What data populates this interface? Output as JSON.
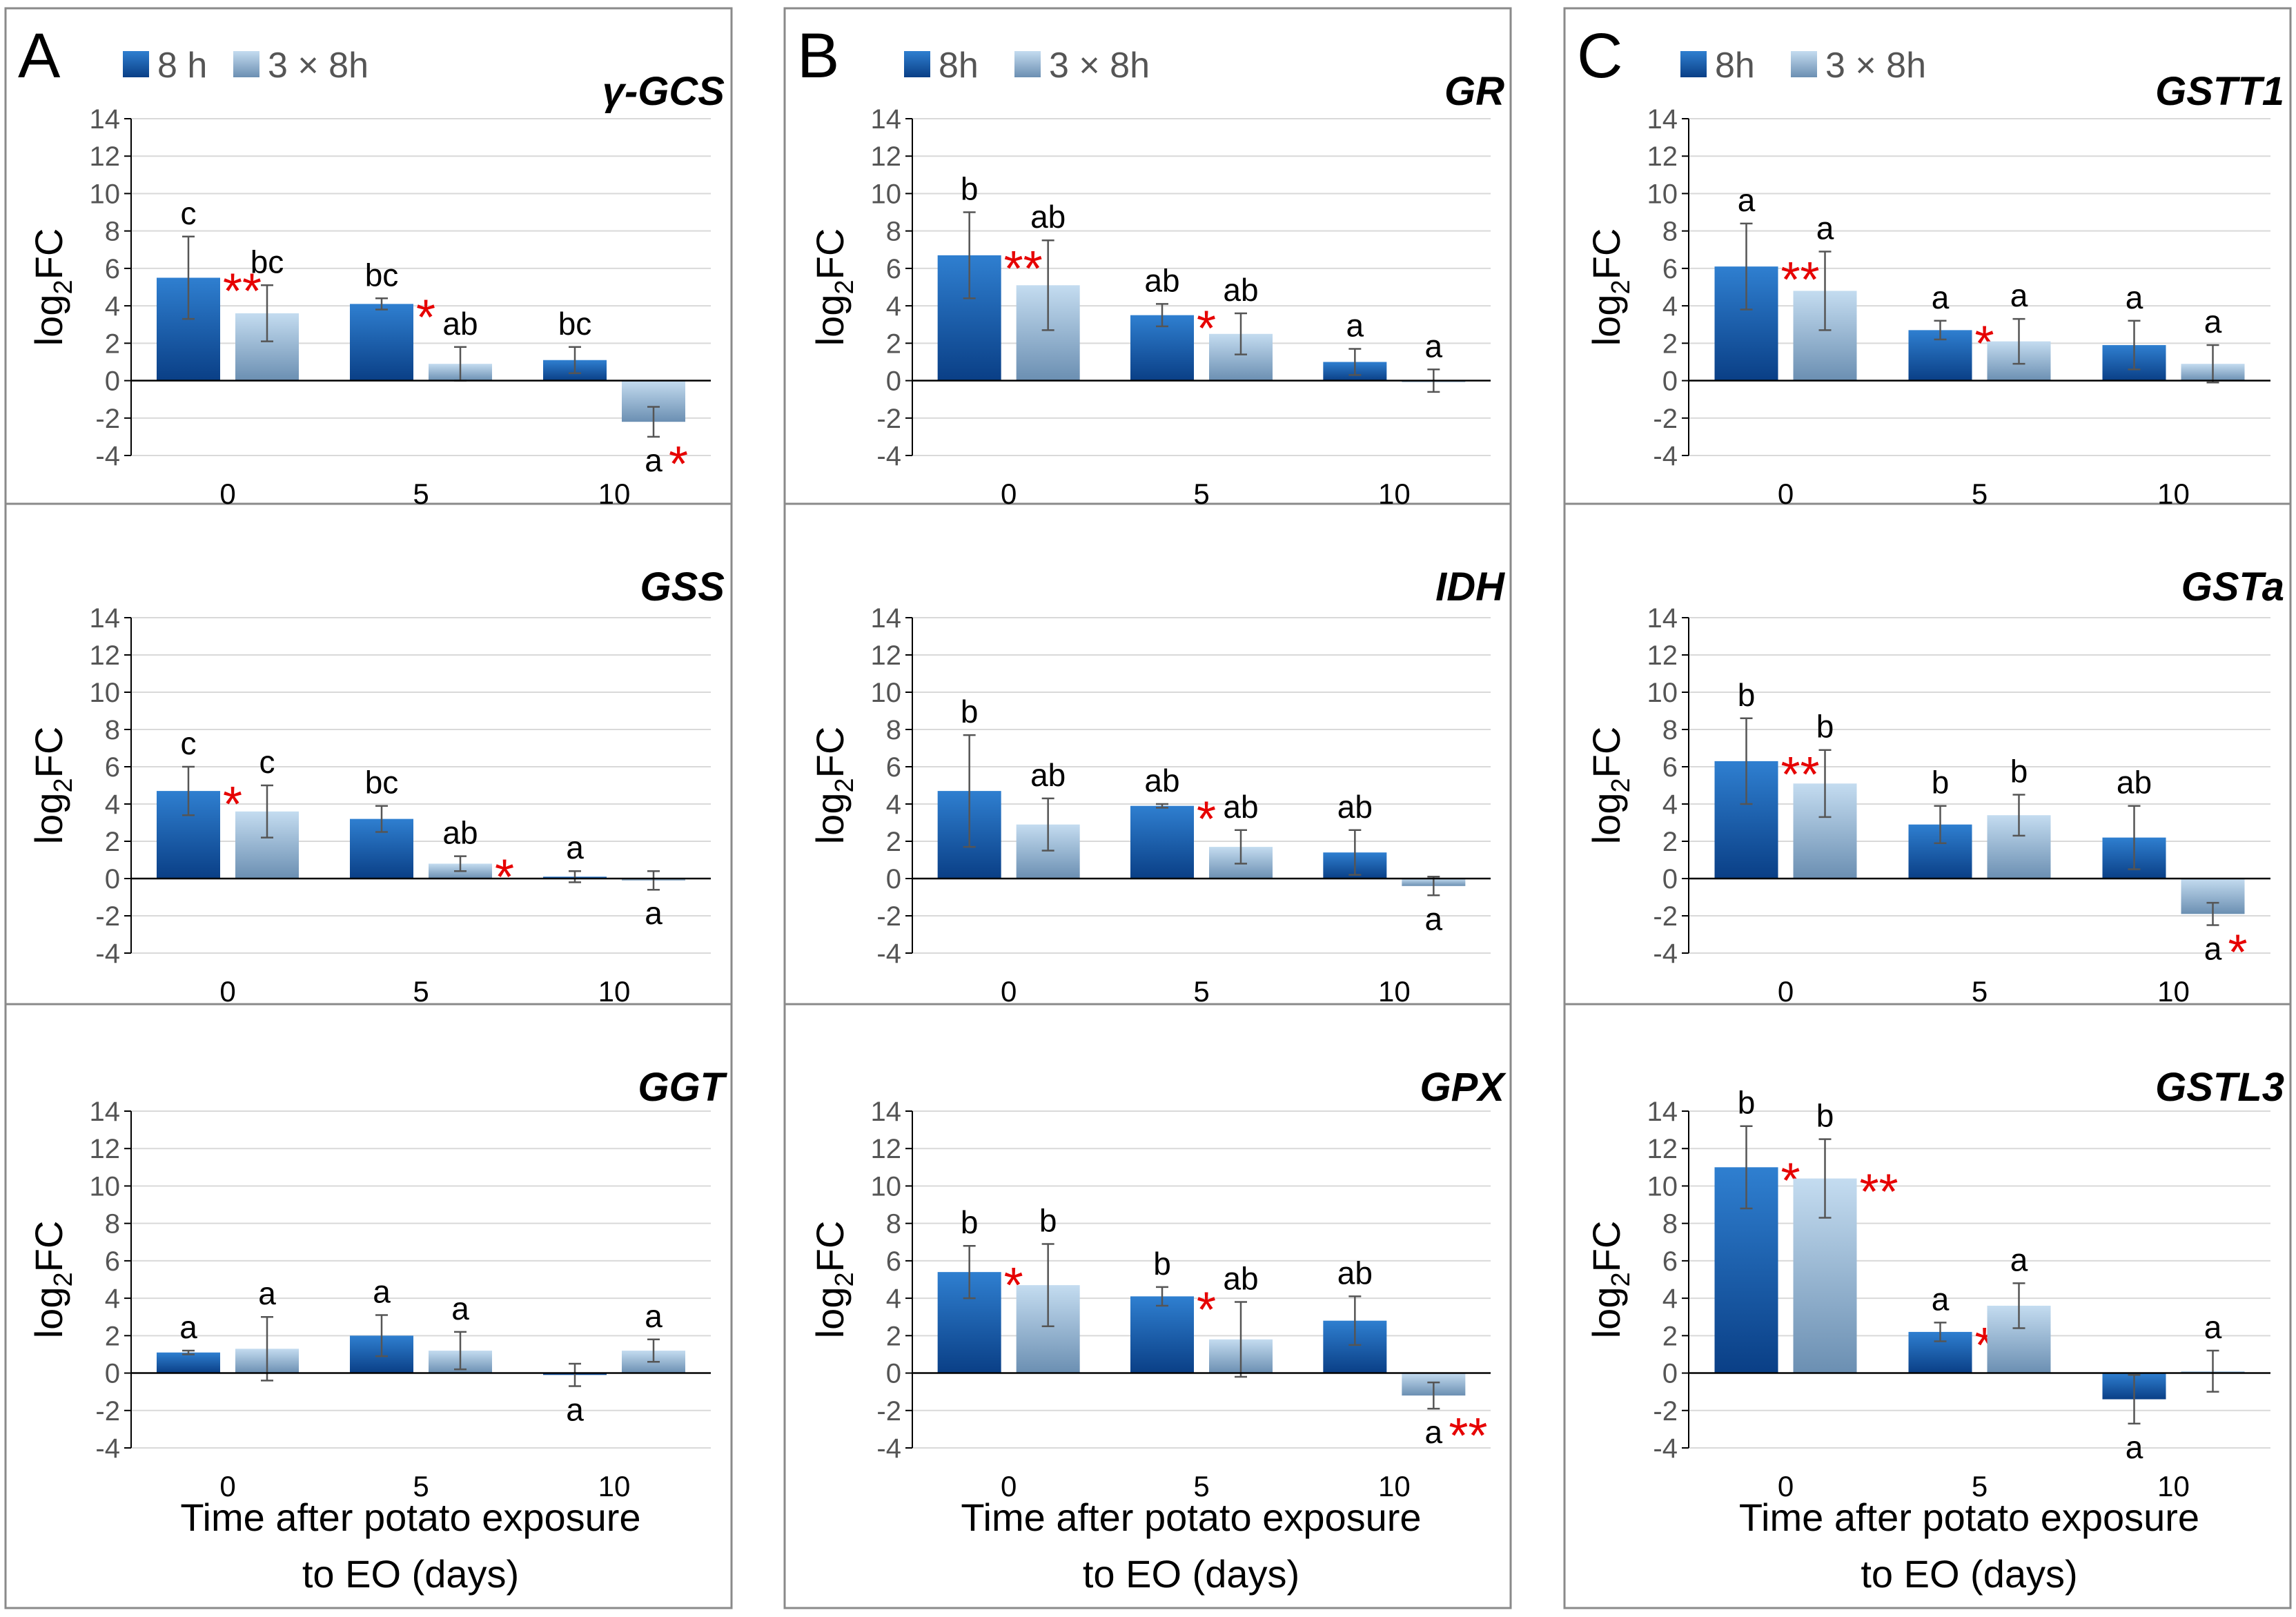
{
  "figure": {
    "x_axis_title_line1": "Time after potato exposure",
    "x_axis_title_line2": "to EO (days)",
    "y_axis_label_main": "log",
    "y_axis_label_sub": "2",
    "y_axis_label_tail": "FC"
  },
  "colors": {
    "series_8h_top": "#2f7fd0",
    "series_8h_bottom": "#0a3f86",
    "series_3x8h_top": "#c4dcf0",
    "series_3x8h_bottom": "#6b8fb2",
    "error_bar": "#555555",
    "axis": "#000000",
    "tick_text": "#555555",
    "grid": "#d9d9d9",
    "star": "#e60000",
    "panel_border": "#8a8a8a"
  },
  "panel_letters": [
    "A",
    "B",
    "C"
  ],
  "chart_data": [
    {
      "type": "bar",
      "column": 0,
      "row": 0,
      "title": "γ-GCS",
      "show_legend": true,
      "legend": [
        "8 h",
        "3 × 8h"
      ],
      "categories": [
        "0",
        "5",
        "10"
      ],
      "ylim": [
        -4,
        14
      ],
      "yticks": [
        "14",
        "12",
        "10",
        "8",
        "6",
        "4",
        "2",
        "0",
        "-2",
        "-4"
      ],
      "series": [
        {
          "name": "8 h",
          "values": [
            5.5,
            4.1,
            1.1
          ],
          "errors": [
            2.2,
            0.3,
            0.7
          ],
          "letters": [
            "c",
            "bc",
            "bc"
          ],
          "stars": [
            "**",
            "*",
            ""
          ]
        },
        {
          "name": "3 × 8h",
          "values": [
            3.6,
            0.9,
            -2.2
          ],
          "errors": [
            1.5,
            0.9,
            0.8
          ],
          "letters": [
            "bc",
            "ab",
            "a"
          ],
          "stars": [
            "",
            "",
            "*"
          ]
        }
      ]
    },
    {
      "type": "bar",
      "column": 0,
      "row": 1,
      "title": "GSS",
      "show_legend": false,
      "categories": [
        "0",
        "5",
        "10"
      ],
      "ylim": [
        -4,
        14
      ],
      "yticks": [
        "14",
        "12",
        "10",
        "8",
        "6",
        "4",
        "2",
        "0",
        "-2",
        "-4"
      ],
      "series": [
        {
          "name": "8 h",
          "values": [
            4.7,
            3.2,
            0.1
          ],
          "errors": [
            1.3,
            0.7,
            0.3
          ],
          "letters": [
            "c",
            "bc",
            "a"
          ],
          "stars": [
            "*",
            "",
            ""
          ]
        },
        {
          "name": "3 × 8h",
          "values": [
            3.6,
            0.8,
            -0.1
          ],
          "errors": [
            1.4,
            0.4,
            0.5
          ],
          "letters": [
            "c",
            "ab",
            "a"
          ],
          "stars": [
            "",
            "*",
            ""
          ]
        }
      ]
    },
    {
      "type": "bar",
      "column": 0,
      "row": 2,
      "title": "GGT",
      "show_legend": false,
      "categories": [
        "0",
        "5",
        "10"
      ],
      "ylim": [
        -4,
        14
      ],
      "yticks": [
        "14",
        "12",
        "10",
        "8",
        "6",
        "4",
        "2",
        "0",
        "-2",
        "-4"
      ],
      "series": [
        {
          "name": "8 h",
          "values": [
            1.1,
            2.0,
            -0.1
          ],
          "errors": [
            0.1,
            1.1,
            0.6
          ],
          "letters": [
            "a",
            "a",
            "a"
          ],
          "stars": [
            "",
            "",
            ""
          ]
        },
        {
          "name": "3 × 8h",
          "values": [
            1.3,
            1.2,
            1.2
          ],
          "errors": [
            1.7,
            1.0,
            0.6
          ],
          "letters": [
            "a",
            "a",
            "a"
          ],
          "stars": [
            "",
            "",
            ""
          ]
        }
      ]
    },
    {
      "type": "bar",
      "column": 1,
      "row": 0,
      "title": "GR",
      "show_legend": true,
      "legend": [
        "8h",
        "3 × 8h"
      ],
      "categories": [
        "0",
        "5",
        "10"
      ],
      "ylim": [
        -4,
        14
      ],
      "yticks": [
        "14",
        "12",
        "10",
        "8",
        "6",
        "4",
        "2",
        "0",
        "-2",
        "-4"
      ],
      "series": [
        {
          "name": "8h",
          "values": [
            6.7,
            3.5,
            1.0
          ],
          "errors": [
            2.3,
            0.6,
            0.7
          ],
          "letters": [
            "b",
            "ab",
            "a"
          ],
          "stars": [
            "**",
            "*",
            ""
          ]
        },
        {
          "name": "3 × 8h",
          "values": [
            5.1,
            2.5,
            0.0
          ],
          "errors": [
            2.4,
            1.1,
            0.6
          ],
          "letters": [
            "ab",
            "ab",
            "a"
          ],
          "stars": [
            "",
            "",
            ""
          ]
        }
      ]
    },
    {
      "type": "bar",
      "column": 1,
      "row": 1,
      "title": "IDH",
      "show_legend": false,
      "categories": [
        "0",
        "5",
        "10"
      ],
      "ylim": [
        -4,
        14
      ],
      "yticks": [
        "14",
        "12",
        "10",
        "8",
        "6",
        "4",
        "2",
        "0",
        "-2",
        "-4"
      ],
      "series": [
        {
          "name": "8h",
          "values": [
            4.7,
            3.9,
            1.4
          ],
          "errors": [
            3.0,
            0.1,
            1.2
          ],
          "letters": [
            "b",
            "ab",
            "ab"
          ],
          "stars": [
            "",
            "*",
            ""
          ]
        },
        {
          "name": "3 × 8h",
          "values": [
            2.9,
            1.7,
            -0.4
          ],
          "errors": [
            1.4,
            0.9,
            0.5
          ],
          "letters": [
            "ab",
            "ab",
            "a"
          ],
          "stars": [
            "",
            "",
            ""
          ]
        }
      ]
    },
    {
      "type": "bar",
      "column": 1,
      "row": 2,
      "title": "GPX",
      "show_legend": false,
      "categories": [
        "0",
        "5",
        "10"
      ],
      "ylim": [
        -4,
        14
      ],
      "yticks": [
        "14",
        "12",
        "10",
        "8",
        "6",
        "4",
        "2",
        "0",
        "-2",
        "-4"
      ],
      "series": [
        {
          "name": "8h",
          "values": [
            5.4,
            4.1,
            2.8
          ],
          "errors": [
            1.4,
            0.5,
            1.3
          ],
          "letters": [
            "b",
            "b",
            "ab"
          ],
          "stars": [
            "*",
            "*",
            ""
          ]
        },
        {
          "name": "3 × 8h",
          "values": [
            4.7,
            1.8,
            -1.2
          ],
          "errors": [
            2.2,
            2.0,
            0.7
          ],
          "letters": [
            "b",
            "ab",
            "a"
          ],
          "stars": [
            "",
            "",
            "**"
          ]
        }
      ]
    },
    {
      "type": "bar",
      "column": 2,
      "row": 0,
      "title": "GSTT1",
      "show_legend": true,
      "legend": [
        "8h",
        "3 × 8h"
      ],
      "categories": [
        "0",
        "5",
        "10"
      ],
      "ylim": [
        -4,
        14
      ],
      "yticks": [
        "14",
        "12",
        "10",
        "8",
        "6",
        "4",
        "2",
        "0",
        "-2",
        "-4"
      ],
      "series": [
        {
          "name": "8h",
          "values": [
            6.1,
            2.7,
            1.9
          ],
          "errors": [
            2.3,
            0.5,
            1.3
          ],
          "letters": [
            "a",
            "a",
            "a"
          ],
          "stars": [
            "**",
            "*",
            ""
          ]
        },
        {
          "name": "3 × 8h",
          "values": [
            4.8,
            2.1,
            0.9
          ],
          "errors": [
            2.1,
            1.2,
            1.0
          ],
          "letters": [
            "a",
            "a",
            "a"
          ],
          "stars": [
            "",
            "",
            ""
          ]
        }
      ]
    },
    {
      "type": "bar",
      "column": 2,
      "row": 1,
      "title": "GSTa",
      "show_legend": false,
      "categories": [
        "0",
        "5",
        "10"
      ],
      "ylim": [
        -4,
        14
      ],
      "yticks": [
        "14",
        "12",
        "10",
        "8",
        "6",
        "4",
        "2",
        "0",
        "-2",
        "-4"
      ],
      "series": [
        {
          "name": "8h",
          "values": [
            6.3,
            2.9,
            2.2
          ],
          "errors": [
            2.3,
            1.0,
            1.7
          ],
          "letters": [
            "b",
            "b",
            "ab"
          ],
          "stars": [
            "**",
            "",
            ""
          ]
        },
        {
          "name": "3 × 8h",
          "values": [
            5.1,
            3.4,
            -1.9
          ],
          "errors": [
            1.8,
            1.1,
            0.6
          ],
          "letters": [
            "b",
            "b",
            "a"
          ],
          "stars": [
            "",
            "",
            "*"
          ]
        }
      ]
    },
    {
      "type": "bar",
      "column": 2,
      "row": 2,
      "title": "GSTL3",
      "show_legend": false,
      "categories": [
        "0",
        "5",
        "10"
      ],
      "ylim": [
        -4,
        14
      ],
      "yticks": [
        "14",
        "12",
        "10",
        "8",
        "6",
        "4",
        "2",
        "0",
        "-2",
        "-4"
      ],
      "series": [
        {
          "name": "8h",
          "values": [
            11.0,
            2.2,
            -1.4
          ],
          "errors": [
            2.2,
            0.5,
            1.3
          ],
          "letters": [
            "b",
            "a",
            "a"
          ],
          "stars": [
            "*",
            "*",
            ""
          ]
        },
        {
          "name": "3 × 8h",
          "values": [
            10.4,
            3.6,
            0.1
          ],
          "errors": [
            2.1,
            1.2,
            1.1
          ],
          "letters": [
            "b",
            "a",
            "a"
          ],
          "stars": [
            "**",
            "",
            ""
          ]
        }
      ]
    }
  ]
}
